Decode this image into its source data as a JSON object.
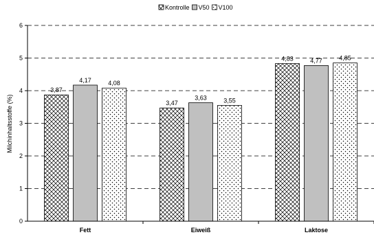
{
  "chart_data": {
    "type": "bar",
    "title": "",
    "xlabel": "",
    "ylabel": "Milchinhaltsstoffe (%)",
    "ylim": [
      0,
      6
    ],
    "yticks": [
      0,
      1,
      2,
      3,
      4,
      5,
      6
    ],
    "grid": "horizontal dashed",
    "legend_position": "top",
    "categories": [
      "Fett",
      "Eiweiß",
      "Laktose"
    ],
    "series": [
      {
        "name": "Kontrolle",
        "values": [
          3.87,
          3.47,
          4.83
        ],
        "labels": [
          "3,87",
          "3,47",
          "4,83"
        ],
        "pattern": "crosshatch",
        "color": "#ffffff"
      },
      {
        "name": "V50",
        "values": [
          4.17,
          3.63,
          4.77
        ],
        "labels": [
          "4,17",
          "3,63",
          "4,77"
        ],
        "pattern": "solid",
        "color": "#c0c0c0"
      },
      {
        "name": "V100",
        "values": [
          4.08,
          3.55,
          4.85
        ],
        "labels": [
          "4,08",
          "3,55",
          "4,85"
        ],
        "pattern": "dots",
        "color": "#ffffff"
      }
    ]
  }
}
